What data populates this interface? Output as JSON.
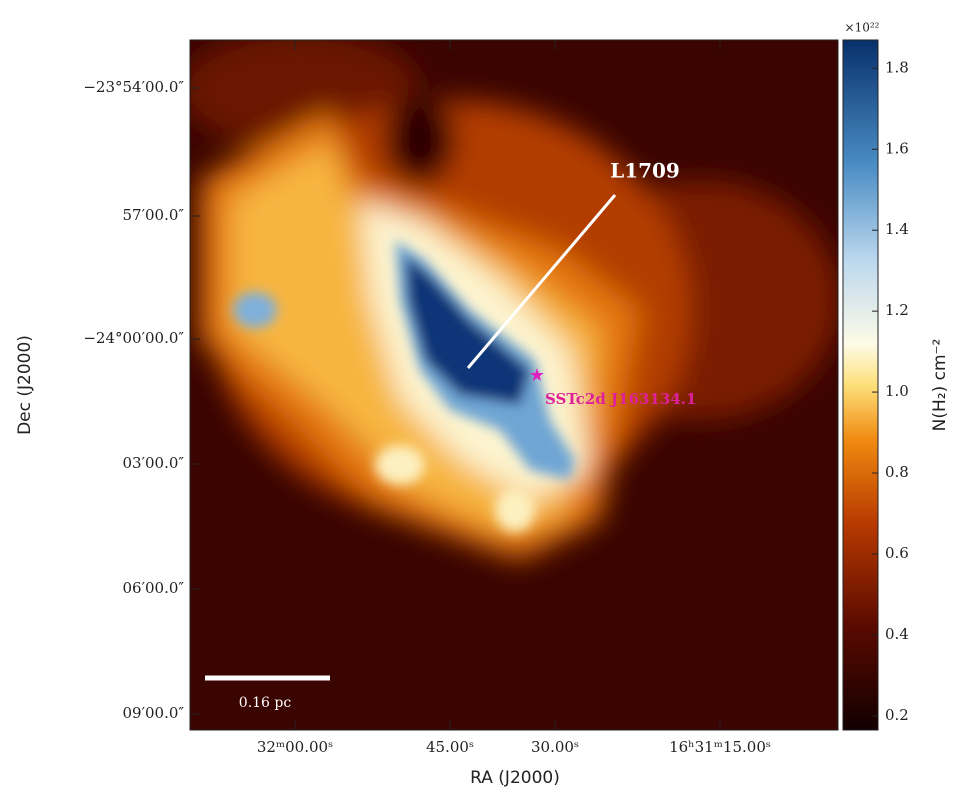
{
  "chart_data": {
    "type": "image",
    "x_label": "RA (J2000)",
    "y_label": "Dec (J2000)",
    "x_tick_labels": [
      "32ᵐ00.00ˢ",
      "45.00ˢ",
      "30.00ˢ",
      "16ʰ31ᵐ15.00ˢ"
    ],
    "y_tick_labels": [
      "−23°54′00.0″",
      "57′00.0″",
      "−24°00′00.0″",
      "03′00.0″",
      "06′00.0″",
      "09′00.0″"
    ],
    "colorbar": {
      "label": "N(H₂) cm⁻²",
      "multiplier": "×10²²",
      "clim": [
        0.165,
        1.87
      ],
      "ticks": [
        0.2,
        0.4,
        0.6,
        0.8,
        {
          "value": 1,
          "label": "1.0"
        },
        1.2,
        1.4,
        1.6,
        1.8
      ]
    },
    "annotations": {
      "cloud": "L1709",
      "source": "SSTc2d J163134.1",
      "scale_bar": "0.16 pc"
    }
  }
}
